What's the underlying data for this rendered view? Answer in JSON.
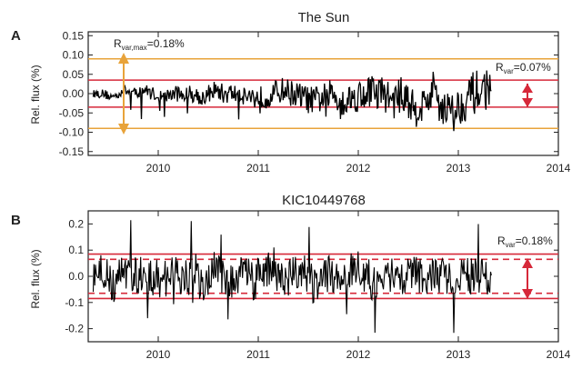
{
  "chart_data": [
    {
      "type": "line",
      "panel_letter": "A",
      "title": "The Sun",
      "xlabel": "",
      "ylabel": "Rel. flux (%)",
      "xlim": [
        2009.3,
        2014.0
      ],
      "ylim": [
        -0.16,
        0.16
      ],
      "x_ticks": [
        2010,
        2011,
        2012,
        2013,
        2014
      ],
      "x_tick_labels": [
        "2010",
        "2011",
        "2012",
        "2013",
        "2014"
      ],
      "y_ticks": [
        -0.15,
        -0.1,
        -0.05,
        0.0,
        0.05,
        0.1,
        0.15
      ],
      "y_tick_labels": [
        "-0.15",
        "-0.10",
        "-0.05",
        "0.00",
        "0.05",
        "0.10",
        "0.15"
      ],
      "series": [
        {
          "x": [
            2009.35,
            2009.45,
            2009.55,
            2009.65,
            2009.75,
            2009.85,
            2009.95,
            2010.05,
            2010.15,
            2010.25,
            2010.35,
            2010.45,
            2010.55,
            2010.65,
            2010.75,
            2010.85,
            2010.95,
            2011.05,
            2011.15,
            2011.25,
            2011.35,
            2011.45,
            2011.55,
            2011.65,
            2011.75,
            2011.85,
            2011.95,
            2012.05,
            2012.15,
            2012.25,
            2012.35,
            2012.45,
            2012.55,
            2012.65,
            2012.75,
            2012.85,
            2012.95,
            2013.05,
            2013.15,
            2013.25,
            2013.33
          ],
          "y": [
            0.0,
            0.0,
            -0.01,
            0.01,
            0.0,
            0.01,
            0.0,
            -0.01,
            0.0,
            0.0,
            0.0,
            -0.01,
            0.01,
            0.0,
            0.0,
            0.0,
            -0.01,
            -0.01,
            0.0,
            0.01,
            0.0,
            -0.01,
            -0.02,
            -0.01,
            0.0,
            -0.02,
            -0.01,
            0.0,
            0.01,
            0.0,
            -0.02,
            0.0,
            -0.04,
            -0.03,
            0.01,
            -0.03,
            -0.05,
            -0.02,
            0.0,
            0.01,
            0.02
          ],
          "color": "#000000"
        }
      ],
      "reference_lines": [
        {
          "y": 0.09,
          "color": "#e8a33a"
        },
        {
          "y": -0.09,
          "color": "#e8a33a"
        },
        {
          "y": 0.035,
          "color": "#d62839"
        },
        {
          "y": -0.035,
          "color": "#d62839"
        }
      ],
      "annotations": [
        {
          "text": "R_var,max=0.18%",
          "color": "#e8a33a"
        },
        {
          "text": "R_var=0.07%",
          "color": "#d62839"
        }
      ]
    },
    {
      "type": "line",
      "panel_letter": "B",
      "title": "KIC10449768",
      "xlabel": "",
      "ylabel": "Rel. flux (%)",
      "xlim": [
        2009.3,
        2014.0
      ],
      "ylim": [
        -0.25,
        0.25
      ],
      "x_ticks": [
        2010,
        2011,
        2012,
        2013,
        2014
      ],
      "x_tick_labels": [
        "2010",
        "2011",
        "2012",
        "2013",
        "2014"
      ],
      "y_ticks": [
        -0.2,
        -0.1,
        0.0,
        0.1,
        0.2
      ],
      "y_tick_labels": [
        "-0.2",
        "-0.1",
        "0.0",
        "0.1",
        "0.2"
      ],
      "series": [
        {
          "x": [
            2009.35,
            2009.45,
            2009.55,
            2009.65,
            2009.75,
            2009.85,
            2009.95,
            2010.05,
            2010.15,
            2010.25,
            2010.35,
            2010.45,
            2010.55,
            2010.65,
            2010.75,
            2010.85,
            2010.95,
            2011.05,
            2011.15,
            2011.25,
            2011.35,
            2011.45,
            2011.55,
            2011.65,
            2011.75,
            2011.85,
            2011.95,
            2012.05,
            2012.15,
            2012.25,
            2012.35,
            2012.45,
            2012.55,
            2012.65,
            2012.75,
            2012.85,
            2012.95,
            2013.05,
            2013.15,
            2013.25,
            2013.33
          ],
          "y": [
            0.0,
            0.02,
            -0.03,
            0.01,
            -0.02,
            0.03,
            0.0,
            -0.02,
            0.02,
            -0.01,
            0.01,
            -0.03,
            0.02,
            0.0,
            -0.01,
            0.02,
            -0.02,
            0.01,
            0.03,
            -0.02,
            0.0,
            0.02,
            -0.03,
            0.01,
            0.0,
            -0.02,
            0.03,
            0.01,
            -0.02,
            0.02,
            -0.01,
            0.0,
            0.02,
            -0.02,
            0.01,
            0.0,
            -0.01,
            0.02,
            -0.01,
            0.01,
            0.0
          ],
          "color": "#000000"
        }
      ],
      "reference_lines": [
        {
          "y": 0.085,
          "color": "#d62839"
        },
        {
          "y": -0.085,
          "color": "#d62839"
        },
        {
          "y": 0.065,
          "color": "#d62839",
          "dashed": true
        },
        {
          "y": -0.065,
          "color": "#d62839",
          "dashed": true
        }
      ],
      "annotations": [
        {
          "text": "R_var=0.18%",
          "color": "#d62839"
        }
      ]
    }
  ]
}
